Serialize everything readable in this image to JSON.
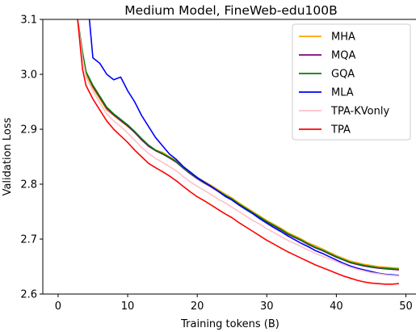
{
  "chart_data": {
    "type": "line",
    "title": "Medium Model, FineWeb-edu100B",
    "xlabel": "Training tokens (B)",
    "ylabel": "Validation Loss",
    "xlim": [
      -2.2,
      51.8
    ],
    "ylim": [
      2.6,
      3.1
    ],
    "xticks": [
      0,
      10,
      20,
      30,
      40,
      50
    ],
    "yticks": [
      2.6,
      2.7,
      2.8,
      2.9,
      3.0,
      3.1
    ],
    "xtick_labels": [
      "0",
      "10",
      "20",
      "30",
      "40",
      "50"
    ],
    "ytick_labels": [
      "2.6",
      "2.7",
      "2.8",
      "2.9",
      "3.0",
      "3.1"
    ],
    "grid": false,
    "legend_position": "top-right",
    "series": [
      {
        "name": "MHA",
        "color": "#FFA500",
        "points": [
          [
            2.8,
            3.1
          ],
          [
            3.5,
            3.03
          ],
          [
            4.0,
            3.0
          ],
          [
            5.0,
            2.975
          ],
          [
            6.0,
            2.955
          ],
          [
            7.0,
            2.935
          ],
          [
            8.0,
            2.925
          ],
          [
            9.0,
            2.915
          ],
          [
            10.0,
            2.905
          ],
          [
            11.0,
            2.895
          ],
          [
            12.0,
            2.88
          ],
          [
            13.0,
            2.87
          ],
          [
            14.0,
            2.862
          ],
          [
            15.0,
            2.858
          ],
          [
            16.0,
            2.85
          ],
          [
            17.0,
            2.843
          ],
          [
            18.0,
            2.832
          ],
          [
            19.0,
            2.822
          ],
          [
            20.0,
            2.812
          ],
          [
            21.0,
            2.805
          ],
          [
            22.0,
            2.798
          ],
          [
            23.0,
            2.79
          ],
          [
            24.0,
            2.782
          ],
          [
            25.0,
            2.775
          ],
          [
            26.0,
            2.766
          ],
          [
            27.0,
            2.758
          ],
          [
            28.0,
            2.75
          ],
          [
            29.0,
            2.742
          ],
          [
            30.0,
            2.734
          ],
          [
            31.0,
            2.727
          ],
          [
            32.0,
            2.72
          ],
          [
            33.0,
            2.712
          ],
          [
            34.0,
            2.706
          ],
          [
            35.0,
            2.7
          ],
          [
            36.0,
            2.693
          ],
          [
            37.0,
            2.688
          ],
          [
            38.0,
            2.682
          ],
          [
            39.0,
            2.676
          ],
          [
            40.0,
            2.67
          ],
          [
            41.0,
            2.665
          ],
          [
            42.0,
            2.66
          ],
          [
            43.0,
            2.657
          ],
          [
            44.0,
            2.654
          ],
          [
            45.0,
            2.652
          ],
          [
            46.0,
            2.65
          ],
          [
            47.0,
            2.649
          ],
          [
            48.0,
            2.648
          ],
          [
            49.0,
            2.647
          ]
        ]
      },
      {
        "name": "MQA",
        "color": "#800080",
        "points": [
          [
            2.8,
            3.1
          ],
          [
            3.5,
            3.04
          ],
          [
            4.0,
            3.005
          ],
          [
            5.0,
            2.978
          ],
          [
            6.0,
            2.958
          ],
          [
            7.0,
            2.938
          ],
          [
            8.0,
            2.926
          ],
          [
            9.0,
            2.916
          ],
          [
            10.0,
            2.906
          ],
          [
            11.0,
            2.894
          ],
          [
            12.0,
            2.881
          ],
          [
            13.0,
            2.869
          ],
          [
            14.0,
            2.861
          ],
          [
            15.0,
            2.855
          ],
          [
            16.0,
            2.848
          ],
          [
            17.0,
            2.84
          ],
          [
            18.0,
            2.829
          ],
          [
            19.0,
            2.819
          ],
          [
            20.0,
            2.81
          ],
          [
            21.0,
            2.802
          ],
          [
            22.0,
            2.795
          ],
          [
            23.0,
            2.787
          ],
          [
            24.0,
            2.779
          ],
          [
            25.0,
            2.772
          ],
          [
            26.0,
            2.763
          ],
          [
            27.0,
            2.755
          ],
          [
            28.0,
            2.747
          ],
          [
            29.0,
            2.739
          ],
          [
            30.0,
            2.731
          ],
          [
            31.0,
            2.724
          ],
          [
            32.0,
            2.717
          ],
          [
            33.0,
            2.709
          ],
          [
            34.0,
            2.703
          ],
          [
            35.0,
            2.697
          ],
          [
            36.0,
            2.69
          ],
          [
            37.0,
            2.684
          ],
          [
            38.0,
            2.679
          ],
          [
            39.0,
            2.673
          ],
          [
            40.0,
            2.667
          ],
          [
            41.0,
            2.662
          ],
          [
            42.0,
            2.657
          ],
          [
            43.0,
            2.654
          ],
          [
            44.0,
            2.651
          ],
          [
            45.0,
            2.649
          ],
          [
            46.0,
            2.647
          ],
          [
            47.0,
            2.646
          ],
          [
            48.0,
            2.645
          ],
          [
            49.0,
            2.644
          ]
        ]
      },
      {
        "name": "GQA",
        "color": "#008000",
        "points": [
          [
            2.8,
            3.1
          ],
          [
            3.5,
            3.04
          ],
          [
            4.0,
            3.005
          ],
          [
            5.0,
            2.98
          ],
          [
            6.0,
            2.96
          ],
          [
            7.0,
            2.94
          ],
          [
            8.0,
            2.928
          ],
          [
            9.0,
            2.918
          ],
          [
            10.0,
            2.908
          ],
          [
            11.0,
            2.896
          ],
          [
            12.0,
            2.883
          ],
          [
            13.0,
            2.871
          ],
          [
            14.0,
            2.862
          ],
          [
            15.0,
            2.856
          ],
          [
            16.0,
            2.849
          ],
          [
            17.0,
            2.841
          ],
          [
            18.0,
            2.83
          ],
          [
            19.0,
            2.82
          ],
          [
            20.0,
            2.811
          ],
          [
            21.0,
            2.803
          ],
          [
            22.0,
            2.796
          ],
          [
            23.0,
            2.788
          ],
          [
            24.0,
            2.78
          ],
          [
            25.0,
            2.773
          ],
          [
            26.0,
            2.764
          ],
          [
            27.0,
            2.756
          ],
          [
            28.0,
            2.748
          ],
          [
            29.0,
            2.74
          ],
          [
            30.0,
            2.732
          ],
          [
            31.0,
            2.725
          ],
          [
            32.0,
            2.718
          ],
          [
            33.0,
            2.71
          ],
          [
            34.0,
            2.704
          ],
          [
            35.0,
            2.698
          ],
          [
            36.0,
            2.691
          ],
          [
            37.0,
            2.685
          ],
          [
            38.0,
            2.68
          ],
          [
            39.0,
            2.674
          ],
          [
            40.0,
            2.668
          ],
          [
            41.0,
            2.663
          ],
          [
            42.0,
            2.658
          ],
          [
            43.0,
            2.655
          ],
          [
            44.0,
            2.652
          ],
          [
            45.0,
            2.65
          ],
          [
            46.0,
            2.648
          ],
          [
            47.0,
            2.647
          ],
          [
            48.0,
            2.646
          ],
          [
            49.0,
            2.645
          ]
        ]
      },
      {
        "name": "MLA",
        "color": "#0000FF",
        "points": [
          [
            4.5,
            3.1
          ],
          [
            5.0,
            3.03
          ],
          [
            6.0,
            3.02
          ],
          [
            7.0,
            3.0
          ],
          [
            8.0,
            2.99
          ],
          [
            9.0,
            2.995
          ],
          [
            10.0,
            2.97
          ],
          [
            11.0,
            2.95
          ],
          [
            12.0,
            2.925
          ],
          [
            13.0,
            2.905
          ],
          [
            14.0,
            2.885
          ],
          [
            15.0,
            2.87
          ],
          [
            16.0,
            2.855
          ],
          [
            17.0,
            2.845
          ],
          [
            18.0,
            2.832
          ],
          [
            19.0,
            2.822
          ],
          [
            20.0,
            2.812
          ],
          [
            21.0,
            2.804
          ],
          [
            22.0,
            2.796
          ],
          [
            23.0,
            2.787
          ],
          [
            24.0,
            2.778
          ],
          [
            25.0,
            2.771
          ],
          [
            26.0,
            2.762
          ],
          [
            27.0,
            2.754
          ],
          [
            28.0,
            2.746
          ],
          [
            29.0,
            2.737
          ],
          [
            30.0,
            2.729
          ],
          [
            31.0,
            2.721
          ],
          [
            32.0,
            2.714
          ],
          [
            33.0,
            2.706
          ],
          [
            34.0,
            2.699
          ],
          [
            35.0,
            2.692
          ],
          [
            36.0,
            2.686
          ],
          [
            37.0,
            2.679
          ],
          [
            38.0,
            2.674
          ],
          [
            39.0,
            2.668
          ],
          [
            40.0,
            2.662
          ],
          [
            41.0,
            2.656
          ],
          [
            42.0,
            2.651
          ],
          [
            43.0,
            2.647
          ],
          [
            44.0,
            2.644
          ],
          [
            45.0,
            2.641
          ],
          [
            46.0,
            2.638
          ],
          [
            47.0,
            2.636
          ],
          [
            48.0,
            2.635
          ],
          [
            49.0,
            2.634
          ]
        ]
      },
      {
        "name": "TPA-KVonly",
        "color": "#FFC0CB",
        "points": [
          [
            2.8,
            3.1
          ],
          [
            3.5,
            3.03
          ],
          [
            4.0,
            2.995
          ],
          [
            5.0,
            2.97
          ],
          [
            6.0,
            2.948
          ],
          [
            7.0,
            2.928
          ],
          [
            8.0,
            2.915
          ],
          [
            9.0,
            2.905
          ],
          [
            10.0,
            2.893
          ],
          [
            11.0,
            2.88
          ],
          [
            12.0,
            2.867
          ],
          [
            13.0,
            2.856
          ],
          [
            14.0,
            2.847
          ],
          [
            15.0,
            2.84
          ],
          [
            16.0,
            2.832
          ],
          [
            17.0,
            2.824
          ],
          [
            18.0,
            2.814
          ],
          [
            19.0,
            2.804
          ],
          [
            20.0,
            2.796
          ],
          [
            21.0,
            2.789
          ],
          [
            22.0,
            2.781
          ],
          [
            23.0,
            2.773
          ],
          [
            24.0,
            2.766
          ],
          [
            25.0,
            2.758
          ],
          [
            26.0,
            2.75
          ],
          [
            27.0,
            2.742
          ],
          [
            28.0,
            2.734
          ],
          [
            29.0,
            2.727
          ],
          [
            30.0,
            2.719
          ],
          [
            31.0,
            2.712
          ],
          [
            32.0,
            2.705
          ],
          [
            33.0,
            2.698
          ],
          [
            34.0,
            2.692
          ],
          [
            35.0,
            2.686
          ],
          [
            36.0,
            2.68
          ],
          [
            37.0,
            2.674
          ],
          [
            38.0,
            2.669
          ],
          [
            39.0,
            2.664
          ],
          [
            40.0,
            2.659
          ],
          [
            41.0,
            2.654
          ],
          [
            42.0,
            2.649
          ],
          [
            43.0,
            2.645
          ],
          [
            44.0,
            2.642
          ],
          [
            45.0,
            2.639
          ],
          [
            46.0,
            2.637
          ],
          [
            47.0,
            2.635
          ],
          [
            48.0,
            2.634
          ],
          [
            49.0,
            2.633
          ]
        ]
      },
      {
        "name": "TPA",
        "color": "#FF0000",
        "points": [
          [
            2.8,
            3.1
          ],
          [
            3.5,
            3.01
          ],
          [
            4.0,
            2.98
          ],
          [
            5.0,
            2.955
          ],
          [
            6.0,
            2.935
          ],
          [
            7.0,
            2.915
          ],
          [
            8.0,
            2.9
          ],
          [
            9.0,
            2.888
          ],
          [
            10.0,
            2.876
          ],
          [
            11.0,
            2.862
          ],
          [
            12.0,
            2.85
          ],
          [
            13.0,
            2.838
          ],
          [
            14.0,
            2.83
          ],
          [
            15.0,
            2.823
          ],
          [
            16.0,
            2.815
          ],
          [
            17.0,
            2.806
          ],
          [
            18.0,
            2.796
          ],
          [
            19.0,
            2.786
          ],
          [
            20.0,
            2.777
          ],
          [
            21.0,
            2.77
          ],
          [
            22.0,
            2.762
          ],
          [
            23.0,
            2.754
          ],
          [
            24.0,
            2.746
          ],
          [
            25.0,
            2.739
          ],
          [
            26.0,
            2.73
          ],
          [
            27.0,
            2.722
          ],
          [
            28.0,
            2.714
          ],
          [
            29.0,
            2.706
          ],
          [
            30.0,
            2.698
          ],
          [
            31.0,
            2.691
          ],
          [
            32.0,
            2.684
          ],
          [
            33.0,
            2.677
          ],
          [
            34.0,
            2.671
          ],
          [
            35.0,
            2.665
          ],
          [
            36.0,
            2.659
          ],
          [
            37.0,
            2.653
          ],
          [
            38.0,
            2.648
          ],
          [
            39.0,
            2.643
          ],
          [
            40.0,
            2.638
          ],
          [
            41.0,
            2.633
          ],
          [
            42.0,
            2.629
          ],
          [
            43.0,
            2.625
          ],
          [
            44.0,
            2.622
          ],
          [
            45.0,
            2.62
          ],
          [
            46.0,
            2.619
          ],
          [
            47.0,
            2.618
          ],
          [
            48.0,
            2.618
          ],
          [
            49.0,
            2.619
          ]
        ]
      }
    ]
  }
}
